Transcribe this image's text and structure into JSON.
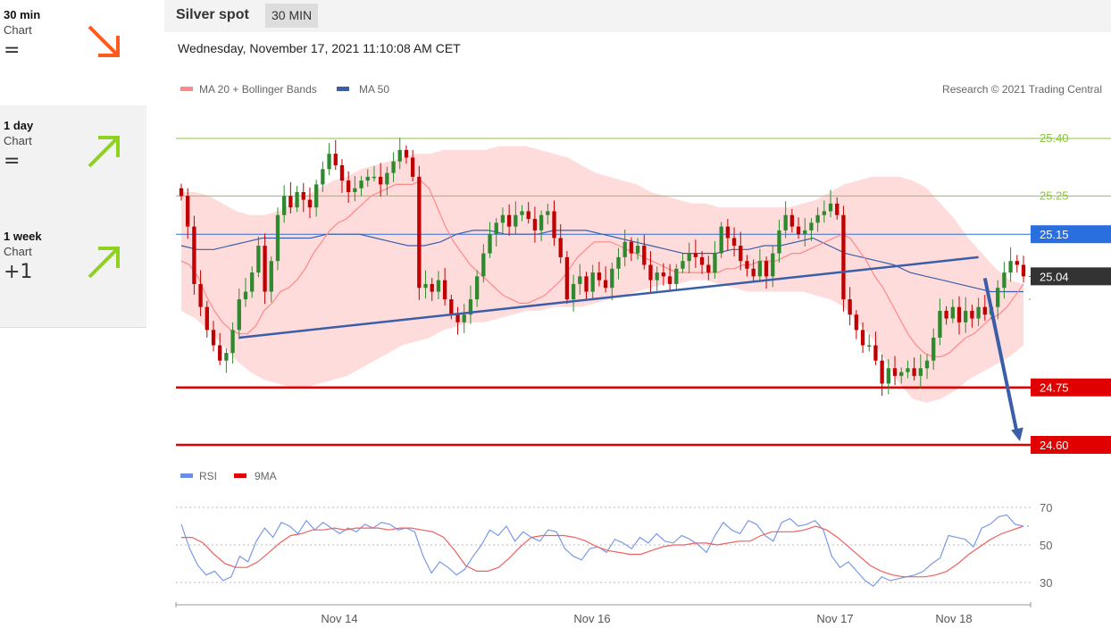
{
  "sidebar": {
    "items": [
      {
        "title": "30 min",
        "subtitle": "Chart",
        "value": "=",
        "direction": "down",
        "color": "#ff5a1f"
      },
      {
        "title": "1 day",
        "subtitle": "Chart",
        "value": "=",
        "direction": "up",
        "color": "#8fd21e"
      },
      {
        "title": "1 week",
        "subtitle": "Chart",
        "value": "+1",
        "direction": "up",
        "color": "#8fd21e"
      }
    ]
  },
  "header": {
    "title": "Silver spot",
    "badge": "30 MIN"
  },
  "timestamp": "Wednesday, November 17, 2021 11:10:08 AM CET",
  "legend": {
    "ma20": "MA 20 + Bollinger Bands",
    "ma50": "MA 50",
    "credit": "Research © 2021 Trading Central",
    "rsi": "RSI",
    "rsi_ma": "9MA"
  },
  "colors": {
    "ma20": "#f88",
    "ma50": "#3b5ea8",
    "band": "#ffd6d6",
    "up": "#2f8a2f",
    "down": "#c00000",
    "resistance": "#8ec43f",
    "support": "#e00000",
    "pivot": "#2a6fe0",
    "last": "#333333"
  },
  "chart_data": [
    {
      "type": "candlestick",
      "title": "Silver spot",
      "x_labels": [
        "Nov 14",
        "Nov 16",
        "Nov 17",
        "Nov 18"
      ],
      "ylim": [
        24.55,
        25.42
      ],
      "levels": [
        {
          "value": 25.4,
          "label": "25.40",
          "kind": "resistance"
        },
        {
          "value": 25.25,
          "label": "25.25",
          "kind": "resistance"
        },
        {
          "value": 25.15,
          "label": "25.15",
          "kind": "pivot"
        },
        {
          "value": 25.04,
          "label": "25.04",
          "kind": "last"
        },
        {
          "value": 24.75,
          "label": "24.75",
          "kind": "support"
        },
        {
          "value": 24.6,
          "label": "24.60",
          "kind": "support"
        }
      ],
      "close": [
        25.25,
        25.17,
        25.02,
        24.96,
        24.9,
        24.86,
        24.82,
        24.84,
        24.9,
        24.98,
        25.0,
        25.05,
        25.12,
        25.0,
        25.08,
        25.2,
        25.25,
        25.22,
        25.26,
        25.24,
        25.22,
        25.28,
        25.32,
        25.36,
        25.33,
        25.29,
        25.26,
        25.27,
        25.29,
        25.3,
        25.3,
        25.28,
        25.31,
        25.34,
        25.37,
        25.35,
        25.3,
        25.01,
        25.02,
        25.0,
        25.03,
        24.98,
        24.94,
        24.92,
        24.94,
        24.98,
        25.04,
        25.1,
        25.15,
        25.18,
        25.2,
        25.17,
        25.2,
        25.21,
        25.19,
        25.16,
        25.2,
        25.21,
        25.14,
        25.09,
        24.98,
        25.02,
        25.04,
        25.0,
        25.05,
        25.03,
        25.01,
        25.06,
        25.09,
        25.13,
        25.1,
        25.12,
        25.07,
        25.03,
        25.05,
        25.04,
        25.02,
        25.06,
        25.08,
        25.1,
        25.09,
        25.07,
        25.05,
        25.1,
        25.17,
        25.14,
        25.12,
        25.08,
        25.06,
        25.04,
        25.08,
        25.04,
        25.1,
        25.16,
        25.2,
        25.17,
        25.15,
        25.16,
        25.18,
        25.2,
        25.21,
        25.23,
        25.2,
        24.98,
        24.94,
        24.9,
        24.86,
        24.86,
        24.82,
        24.76,
        24.8,
        24.78,
        24.79,
        24.8,
        24.78,
        24.8,
        24.82,
        24.88,
        24.95,
        24.93,
        24.96,
        24.92,
        24.95,
        24.93,
        24.96,
        24.94,
        24.96,
        25.01,
        25.05,
        25.08,
        25.07,
        25.04
      ],
      "ma20": [
        25.08,
        25.07,
        25.04,
        24.99,
        24.95,
        24.92,
        24.9,
        24.89,
        24.89,
        24.91,
        24.95,
        24.97,
        25.0,
        25.01,
        25.03,
        25.06,
        25.1,
        25.13,
        25.16,
        25.18,
        25.19,
        25.21,
        25.23,
        25.25,
        25.26,
        25.27,
        25.28,
        25.28,
        25.28,
        25.29,
        25.27,
        25.22,
        25.17,
        25.13,
        25.1,
        25.07,
        25.05,
        25.03,
        25.01,
        24.99,
        24.98,
        24.97,
        24.97,
        24.98,
        24.99,
        25.01,
        25.03,
        25.06,
        25.09,
        25.11,
        25.13,
        25.13,
        25.13,
        25.12,
        25.11,
        25.1,
        25.09,
        25.08,
        25.07,
        25.06,
        25.05,
        25.05,
        25.05,
        25.05,
        25.05,
        25.05,
        25.06,
        25.06,
        25.07,
        25.07,
        25.08,
        25.08,
        25.08,
        25.09,
        25.1,
        25.1,
        25.11,
        25.12,
        25.13,
        25.14,
        25.15,
        25.14,
        25.11,
        25.08,
        25.04,
        25.01,
        24.97,
        24.93,
        24.89,
        24.86,
        24.84,
        24.83,
        24.83,
        24.84,
        24.86,
        24.88,
        24.89,
        24.91,
        24.93,
        24.94,
        24.96,
        24.99,
        25.02
      ],
      "ma50": [
        25.12,
        25.11,
        25.11,
        25.12,
        25.13,
        25.14,
        25.14,
        25.14,
        25.14,
        25.15,
        25.15,
        25.15,
        25.14,
        25.13,
        25.12,
        25.12,
        25.13,
        25.15,
        25.16,
        25.16,
        25.15,
        25.15,
        25.15,
        25.16,
        25.16,
        25.16,
        25.15,
        25.14,
        25.13,
        25.12,
        25.11,
        25.1,
        25.1,
        25.1,
        25.11,
        25.11,
        25.12,
        25.12,
        25.13,
        25.14,
        25.12,
        25.1,
        25.09,
        25.08,
        25.07,
        25.05,
        25.04,
        25.03,
        25.02,
        25.01,
        25.0,
        25.0,
        25.0
      ],
      "bb_upper": [
        25.26,
        25.26,
        25.25,
        25.23,
        25.21,
        25.2,
        25.2,
        25.21,
        25.23,
        25.25,
        25.27,
        25.29,
        25.3,
        25.32,
        25.33,
        25.34,
        25.35,
        25.36,
        25.36,
        25.37,
        25.37,
        25.37,
        25.37,
        25.38,
        25.38,
        25.38,
        25.37,
        25.36,
        25.35,
        25.33,
        25.31,
        25.3,
        25.29,
        25.28,
        25.26,
        25.25,
        25.24,
        25.23,
        25.23,
        25.22,
        25.22,
        25.22,
        25.22,
        25.22,
        25.22,
        25.23,
        25.24,
        25.26,
        25.28,
        25.29,
        25.3,
        25.3,
        25.3,
        25.29,
        25.27,
        25.23,
        25.19,
        25.14,
        25.1,
        25.06,
        25.03,
        25.02
      ],
      "bb_lower": [
        24.95,
        24.93,
        24.9,
        24.86,
        24.82,
        24.79,
        24.77,
        24.76,
        24.75,
        24.75,
        24.76,
        24.77,
        24.78,
        24.8,
        24.82,
        24.84,
        24.86,
        24.87,
        24.88,
        24.9,
        24.91,
        24.92,
        24.92,
        24.93,
        24.94,
        24.95,
        24.95,
        24.96,
        24.96,
        24.96,
        24.97,
        24.98,
        24.99,
        25.0,
        25.01,
        25.02,
        25.02,
        25.03,
        25.03,
        25.02,
        25.01,
        25.0,
        25.0,
        25.0,
        25.0,
        25.0,
        24.99,
        24.98,
        24.96,
        24.92,
        24.88,
        24.82,
        24.76,
        24.72,
        24.71,
        24.72,
        24.74,
        24.77,
        24.79,
        24.81,
        24.83,
        24.86
      ],
      "trendlines": [
        {
          "from": [
            9,
            24.88
          ],
          "to": [
            124,
            25.09
          ]
        }
      ],
      "projection": {
        "from": [
          125,
          25.04
        ],
        "to": [
          130,
          24.6
        ]
      }
    },
    {
      "type": "line",
      "title": "RSI",
      "ylim": [
        22,
        78
      ],
      "ticks": [
        30,
        50,
        70
      ],
      "series": [
        {
          "name": "RSI",
          "values": [
            61,
            48,
            39,
            34,
            36,
            31,
            33,
            44,
            41,
            52,
            59,
            54,
            62,
            60,
            56,
            63,
            58,
            62,
            59,
            56,
            59,
            57,
            61,
            59,
            62,
            61,
            58,
            59,
            57,
            44,
            35,
            41,
            38,
            34,
            37,
            44,
            50,
            58,
            55,
            60,
            52,
            57,
            54,
            52,
            58,
            57,
            48,
            44,
            42,
            48,
            49,
            46,
            53,
            51,
            48,
            54,
            51,
            56,
            52,
            51,
            55,
            53,
            50,
            46,
            55,
            62,
            58,
            56,
            63,
            61,
            55,
            52,
            62,
            64,
            60,
            61,
            63,
            58,
            44,
            38,
            41,
            36,
            31,
            28,
            33,
            31,
            32,
            33,
            34,
            36,
            40,
            43,
            55,
            54,
            53,
            49,
            59,
            61,
            65,
            66,
            61,
            60
          ]
        },
        {
          "name": "9MA",
          "values": [
            54,
            54,
            51,
            45,
            40,
            38,
            38,
            41,
            46,
            51,
            55,
            56,
            58,
            58,
            59,
            58,
            59,
            59,
            59,
            58,
            59,
            59,
            58,
            57,
            54,
            47,
            39,
            36,
            36,
            38,
            43,
            49,
            54,
            55,
            55,
            55,
            54,
            52,
            49,
            47,
            46,
            45,
            45,
            47,
            49,
            50,
            50,
            51,
            51,
            50,
            51,
            52,
            52,
            55,
            57,
            57,
            57,
            58,
            60,
            58,
            54,
            49,
            44,
            39,
            36,
            34,
            33,
            33,
            33,
            34,
            36,
            40,
            45,
            49,
            53,
            56,
            58,
            60
          ]
        }
      ]
    }
  ]
}
